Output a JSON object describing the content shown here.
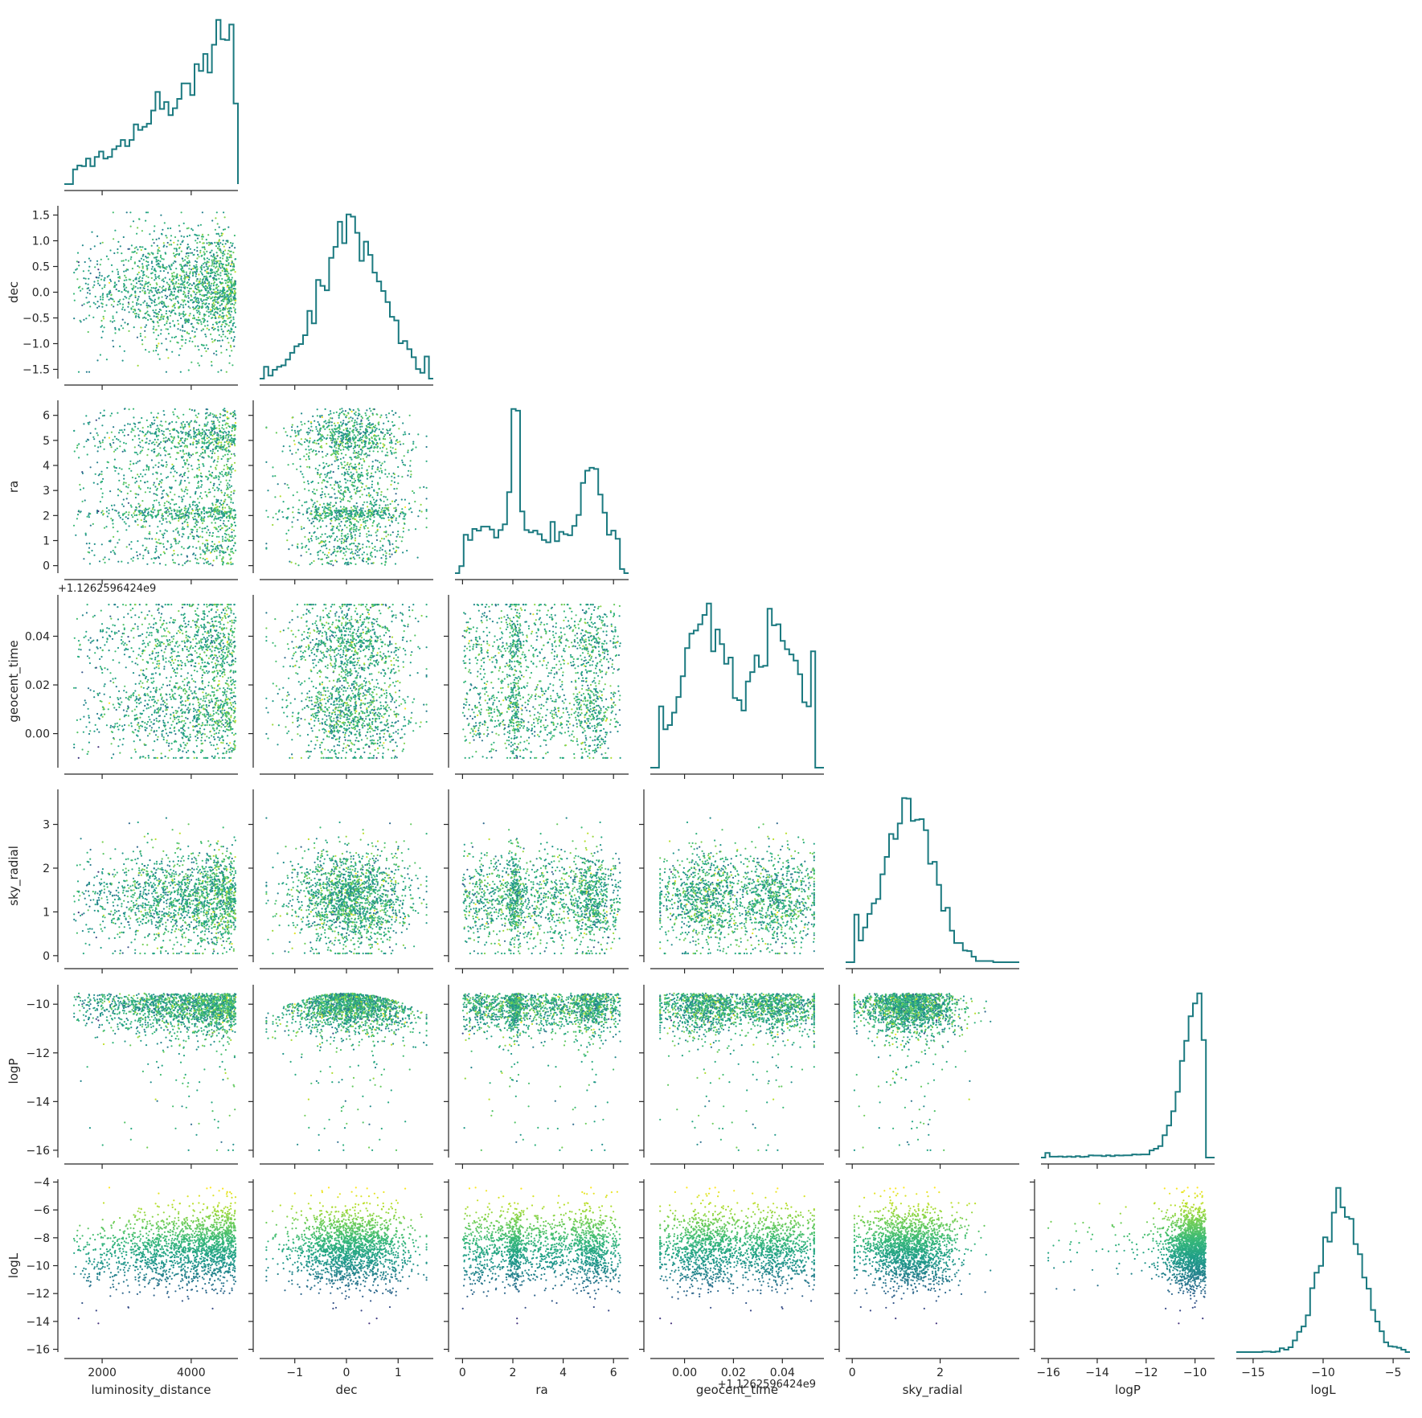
{
  "chart_data": {
    "type": "corner",
    "description": "Triangle pair-plot of posterior samples: histograms on the diagonal, scatter plots colored by logL (viridis) below.",
    "variables": [
      {
        "name": "luminosity_distance",
        "label": "luminosity_distance",
        "range": [
          1150,
          5050
        ],
        "ticks": [
          2000,
          4000
        ],
        "tick_labels": [
          "2000",
          "4000"
        ]
      },
      {
        "name": "dec",
        "label": "dec",
        "range": [
          -1.68,
          1.68
        ],
        "ticks": [
          -1.5,
          -1.0,
          -0.5,
          0.0,
          0.5,
          1.0,
          1.5
        ],
        "tick_labels": [
          "−1.5",
          "−1.0",
          "−0.5",
          "0.0",
          "0.5",
          "1.0",
          "1.5"
        ],
        "x_ticks": [
          -1,
          0,
          1
        ],
        "x_tick_labels": [
          "−1",
          "0",
          "1"
        ]
      },
      {
        "name": "ra",
        "label": "ra",
        "range": [
          -0.3,
          6.6
        ],
        "ticks": [
          0,
          1,
          2,
          3,
          4,
          5,
          6
        ],
        "tick_labels": [
          "0",
          "1",
          "2",
          "3",
          "4",
          "5",
          "6"
        ],
        "x_ticks": [
          0,
          2,
          4,
          6
        ],
        "x_tick_labels": [
          "0",
          "2",
          "4",
          "6"
        ]
      },
      {
        "name": "geocent_time",
        "label": "geocent_time",
        "range": [
          -0.014,
          0.057
        ],
        "ticks": [
          0.0,
          0.02,
          0.04
        ],
        "tick_labels": [
          "0.00",
          "0.02",
          "0.04"
        ],
        "offset_label": "+1.1262596424e9"
      },
      {
        "name": "sky_radial",
        "label": "sky_radial",
        "range": [
          -0.15,
          3.8
        ],
        "ticks": [
          0,
          1,
          2,
          3
        ],
        "tick_labels": [
          "0",
          "1",
          "2",
          "3"
        ],
        "x_ticks": [
          0,
          2
        ],
        "x_tick_labels": [
          "0",
          "2"
        ]
      },
      {
        "name": "logP",
        "label": "logP",
        "range": [
          -16.3,
          -9.2
        ],
        "ticks": [
          -16,
          -14,
          -12,
          -10
        ],
        "tick_labels": [
          "−16",
          "−14",
          "−12",
          "−10"
        ]
      },
      {
        "name": "logL",
        "label": "logL",
        "range": [
          -16.2,
          -3.8
        ],
        "ticks": [
          -16,
          -14,
          -12,
          -10,
          -8,
          -6,
          -4
        ],
        "tick_labels": [
          "−16",
          "−14",
          "−12",
          "−10",
          "−8",
          "−6",
          "−4"
        ],
        "x_ticks": [
          -15,
          -10,
          -5
        ],
        "x_tick_labels": [
          "−15",
          "−10",
          "−5"
        ]
      }
    ],
    "diagonal": "step histogram",
    "offdiagonal": "scatter colored by logL",
    "colormap": "viridis",
    "histogram_color": "#1b7a80",
    "grid": false,
    "legend": "none",
    "approximate_distributions": {
      "luminosity_distance": "rises steeply toward upper prior bound 5000",
      "dec": "peaked near 0.1, spread ±1.5",
      "ra": "roughly uniform 0–6.28 with peaks near 2.1 and 5.1",
      "geocent_time": "bimodal with peaks near 0.008 and 0.038",
      "sky_radial": "peaked near 1.3",
      "logP": "sharp peak near −9.7 with long tail to −16",
      "logL": "peaked near −8.7"
    }
  }
}
